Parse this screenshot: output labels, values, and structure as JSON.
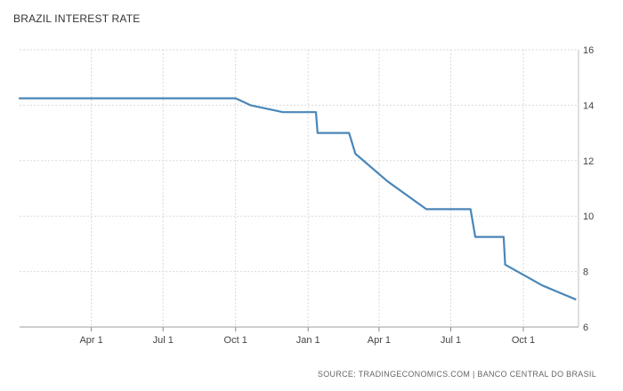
{
  "chart_data": {
    "type": "line",
    "title": "BRAZIL INTEREST RATE",
    "source": "SOURCE: TRADINGECONOMICS.COM | BANCO CENTRAL DO BRASIL",
    "xlabel": "",
    "ylabel": "",
    "ylim": [
      6,
      16
    ],
    "yticks": [
      6,
      8,
      10,
      12,
      14,
      16
    ],
    "xticks": [
      "Apr 1",
      "Jul 1",
      "Oct 1",
      "Jan 1",
      "Apr 1",
      "Jul 1",
      "Oct 1"
    ],
    "grid": true,
    "line_color": "#4a86b8",
    "series": [
      {
        "x": [
          "2016-01-01",
          "2016-02-01",
          "2016-03-01",
          "2016-04-01",
          "2016-05-01",
          "2016-06-01",
          "2016-07-01",
          "2016-08-01",
          "2016-09-01",
          "2016-10-01",
          "2016-10-20",
          "2016-11-30",
          "2017-01-11",
          "2017-01-13",
          "2017-02-22",
          "2017-03-02",
          "2017-04-12",
          "2017-05-31",
          "2017-06-01",
          "2017-07-26",
          "2017-08-01",
          "2017-09-06",
          "2017-09-08",
          "2017-10-25",
          "2017-12-06"
        ],
        "values": [
          14.25,
          14.25,
          14.25,
          14.25,
          14.25,
          14.25,
          14.25,
          14.25,
          14.25,
          14.25,
          14.0,
          13.75,
          13.75,
          13.0,
          13.0,
          12.25,
          11.25,
          10.25,
          10.25,
          10.25,
          9.25,
          9.25,
          8.25,
          7.5,
          7.0
        ]
      }
    ]
  }
}
